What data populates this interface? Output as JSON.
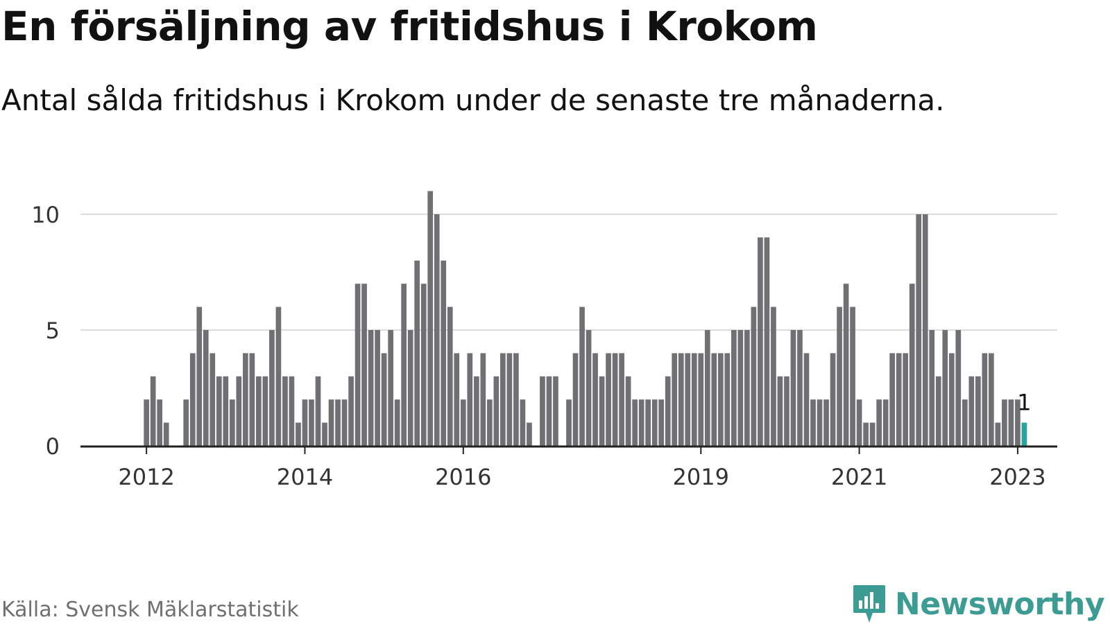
{
  "header": {
    "title": "En försäljning av fritidshus i Krokom",
    "subtitle": "Antal sålda fritidshus i Krokom under de senaste tre månaderna."
  },
  "footer": {
    "source": "Källa: Svensk Mäklarstatistik",
    "brand": "Newsworthy",
    "brand_icon": "bar-chart-speech-bubble-icon"
  },
  "colors": {
    "bar": "#707074",
    "highlight": "#2aa39a",
    "grid": "#dddddd",
    "axis": "#222222",
    "brand": "#3c9b93"
  },
  "chart_data": {
    "type": "bar",
    "x_axis": "monthly time axis",
    "start": "2012-01",
    "end": "2023-02",
    "xlim": [
      "2011-03",
      "2023-07"
    ],
    "ylim": [
      0,
      12.5
    ],
    "y_ticks": [
      0,
      5,
      10
    ],
    "x_ticks": [
      {
        "date": "2012-01",
        "label": "2012"
      },
      {
        "date": "2014-01",
        "label": "2014"
      },
      {
        "date": "2016-01",
        "label": "2016"
      },
      {
        "date": "2019-01",
        "label": "2019"
      },
      {
        "date": "2021-01",
        "label": "2021"
      },
      {
        "date": "2023-01",
        "label": "2023"
      }
    ],
    "grid": "horizontal",
    "values": [
      2,
      3,
      2,
      1,
      0,
      0,
      2,
      4,
      6,
      5,
      4,
      3,
      3,
      2,
      3,
      4,
      4,
      3,
      3,
      5,
      6,
      3,
      3,
      1,
      2,
      2,
      3,
      1,
      2,
      2,
      2,
      3,
      7,
      7,
      5,
      5,
      4,
      5,
      2,
      7,
      5,
      8,
      7,
      11,
      10,
      8,
      6,
      4,
      2,
      4,
      3,
      4,
      2,
      3,
      4,
      4,
      4,
      2,
      1,
      0,
      3,
      3,
      3,
      0,
      2,
      4,
      6,
      5,
      4,
      3,
      4,
      4,
      4,
      3,
      2,
      2,
      2,
      2,
      2,
      3,
      4,
      4,
      4,
      4,
      4,
      5,
      4,
      4,
      4,
      5,
      5,
      5,
      6,
      9,
      9,
      6,
      3,
      3,
      5,
      5,
      4,
      2,
      2,
      2,
      4,
      6,
      7,
      6,
      2,
      1,
      1,
      2,
      2,
      4,
      4,
      4,
      7,
      10,
      10,
      5,
      3,
      5,
      4,
      5,
      2,
      3,
      3,
      4,
      4,
      1,
      2,
      2,
      2,
      1
    ],
    "highlight_index": 133,
    "highlight_label": "1"
  }
}
